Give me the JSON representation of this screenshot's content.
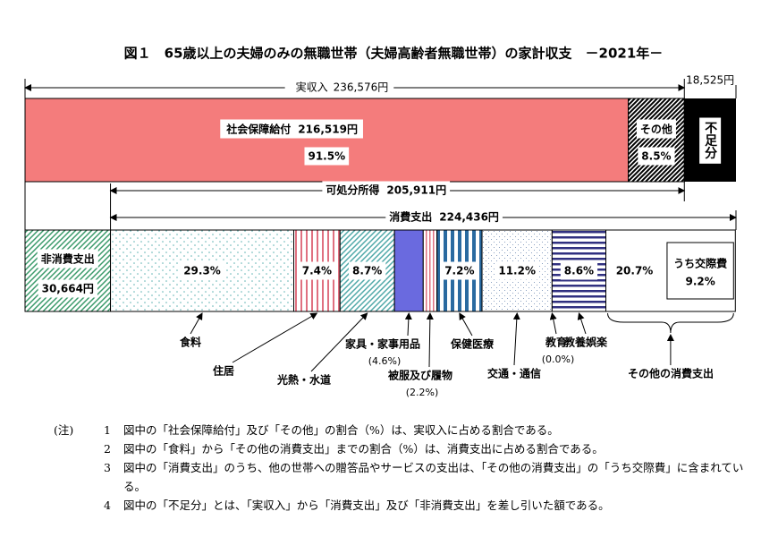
{
  "chart_data": {
    "type": "household-budget",
    "title": "図１　65歳以上の夫婦のみの無職世帯（夫婦高齢者無職世帯）の家計収支　－2021年－",
    "income": {
      "name": "実収入",
      "value": 236576,
      "value_label": "236,576円"
    },
    "income_segments": [
      {
        "name": "社会保障給付",
        "value": 216519,
        "value_label": "216,519円",
        "share": 91.5,
        "share_label": "91.5%",
        "color": "#f47c7c"
      },
      {
        "name": "その他",
        "share": 8.5,
        "share_label": "8.5%",
        "color": "#000000"
      }
    ],
    "shortfall": {
      "name": "不足分",
      "value": 18525,
      "value_label": "18,525円",
      "color": "#000000"
    },
    "disposable": {
      "name": "可処分所得",
      "value": 205911,
      "value_label": "205,911円"
    },
    "non_consumption": {
      "name": "非消費支出",
      "value": 30664,
      "value_label": "30,664円",
      "color": "#3a9a6a"
    },
    "consumption": {
      "name": "消費支出",
      "value": 224436,
      "value_label": "224,436円"
    },
    "consumption_items": [
      {
        "name": "食料",
        "share": 29.3,
        "share_label": "29.3%",
        "color": "#5fb3b3"
      },
      {
        "name": "住居",
        "share": 7.4,
        "share_label": "7.4%",
        "color": "#e07080"
      },
      {
        "name": "光熱・水道",
        "share": 8.7,
        "share_label": "8.7%",
        "color": "#4fa8a8"
      },
      {
        "name": "家具・家事用品",
        "share": 4.6,
        "share_label": "(4.6%)",
        "color": "#6a6adf",
        "label_position": "below"
      },
      {
        "name": "被服及び履物",
        "share": 2.2,
        "share_label": "(2.2%)",
        "color": "#e07080",
        "label_position": "below"
      },
      {
        "name": "保健医療",
        "share": 7.2,
        "share_label": "7.2%",
        "color": "#2a6aa0"
      },
      {
        "name": "交通・通信",
        "share": 11.2,
        "share_label": "11.2%",
        "color": "#8aa0c0"
      },
      {
        "name": "教育",
        "share": 0.0,
        "share_label": "(0.0%)",
        "label_position": "below"
      },
      {
        "name": "教養娯楽",
        "share": 8.6,
        "share_label": "8.6%",
        "color": "#303080"
      },
      {
        "name": "その他の消費支出",
        "share": 20.7,
        "share_label": "20.7%"
      }
    ],
    "sub_item": {
      "name": "うち交際費",
      "share": 9.2,
      "share_label": "9.2%"
    },
    "notes_label": "(注)",
    "notes": [
      {
        "num": "1",
        "text": "図中の「社会保障給付」及び「その他」の割合（%）は、実収入に占める割合である。"
      },
      {
        "num": "2",
        "text": "図中の「食料」から「その他の消費支出」までの割合（%）は、消費支出に占める割合である。"
      },
      {
        "num": "3",
        "text": "図中の「消費支出」のうち、他の世帯への贈答品やサービスの支出は、「その他の消費支出」の「うち交際費」に含まれている。"
      },
      {
        "num": "4",
        "text": "図中の「不足分」とは、「実収入」から「消費支出」及び「非消費支出」を差し引いた額である。"
      }
    ]
  }
}
